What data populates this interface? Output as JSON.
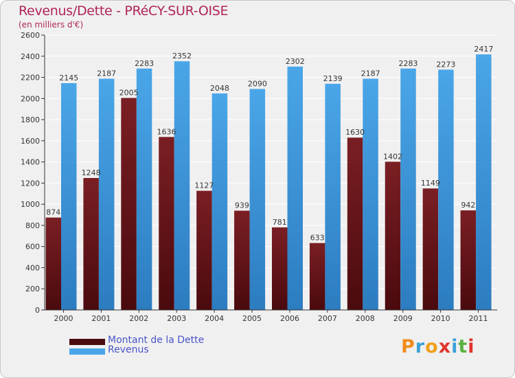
{
  "header": {
    "title": "Revenus/Dette - PRéCY-SUR-OISE",
    "subtitle": "(en milliers d'€)"
  },
  "legend": {
    "dette_label": "Montant de la Dette",
    "revenus_label": "Revenus"
  },
  "logo": {
    "letters": [
      "P",
      "r",
      "o",
      "x",
      "i",
      "t",
      "i"
    ],
    "colors": [
      "#f08c1c",
      "#3ca0d8",
      "#f0a01c",
      "#e0342c",
      "#3ca0d8",
      "#58b040",
      "#e0342c"
    ]
  },
  "colors": {
    "dette": "#7a1f24",
    "dette_dark": "#4a0a0e",
    "revenus": "#4aa6e8",
    "revenus_dark": "#2c7cc0",
    "title": "#b0245a"
  },
  "chart_data": {
    "type": "bar",
    "title": "Revenus/Dette - PRéCY-SUR-OISE",
    "ylabel": "(en milliers d'€)",
    "xlabel": "",
    "ylim": [
      0,
      2600
    ],
    "yticks": [
      0,
      200,
      400,
      600,
      800,
      1000,
      1200,
      1400,
      1600,
      1800,
      2000,
      2200,
      2400,
      2600
    ],
    "grid": true,
    "legend_position": "bottom-left",
    "categories": [
      "2000",
      "2001",
      "2002",
      "2003",
      "2004",
      "2005",
      "2006",
      "2007",
      "2008",
      "2009",
      "2010",
      "2011"
    ],
    "series": [
      {
        "name": "Montant de la Dette",
        "values": [
          874,
          1248,
          2005,
          1636,
          1127,
          939,
          781,
          633,
          1630,
          1402,
          1149,
          942
        ]
      },
      {
        "name": "Revenus",
        "values": [
          2145,
          2187,
          2283,
          2352,
          2048,
          2090,
          2302,
          2139,
          2187,
          2283,
          2273,
          2417
        ]
      }
    ]
  }
}
